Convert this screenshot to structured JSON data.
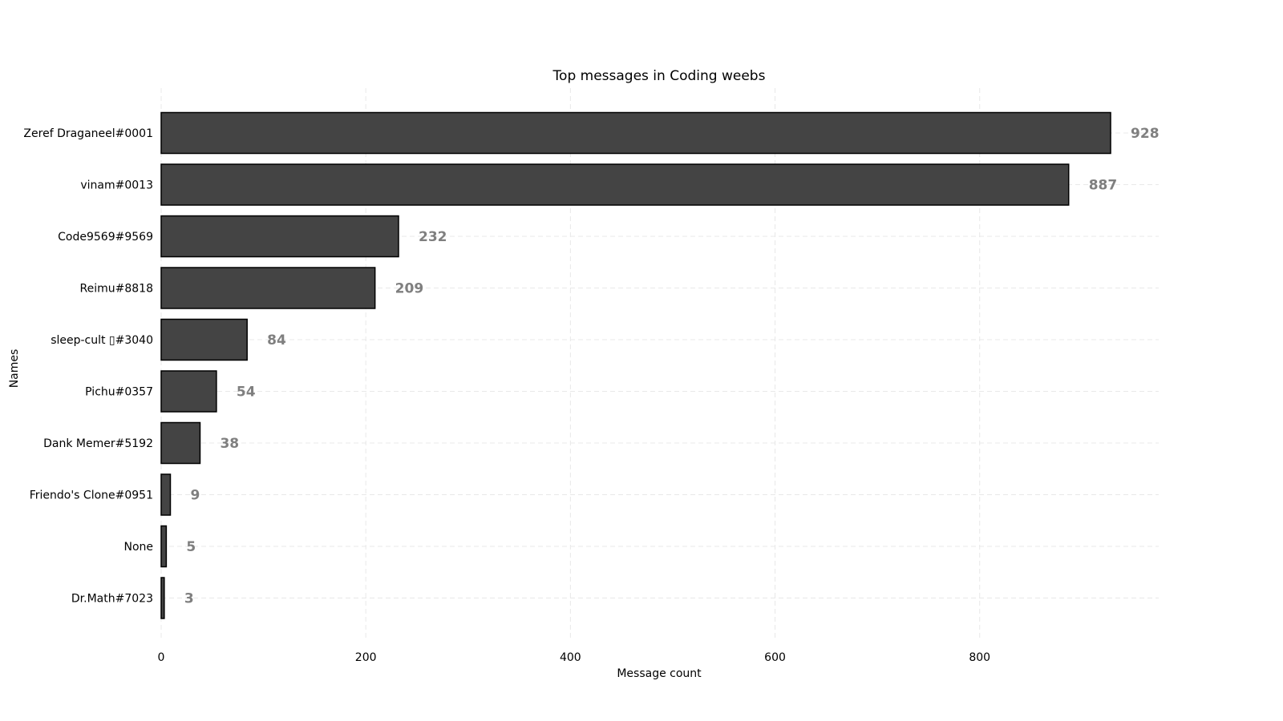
{
  "chart_data": {
    "type": "bar",
    "orientation": "horizontal",
    "title": "Top messages in Coding weebs",
    "xlabel": "Message count",
    "ylabel": "Names",
    "categories": [
      "Zeref Draganeel#0001",
      "vinam#0013",
      "Code9569#9569",
      "Reimu#8818",
      "sleep-cult ▯#3040",
      "Pichu#0357",
      "Dank Memer#5192",
      "Friendo's Clone#0951",
      "None",
      "Dr.Math#7023"
    ],
    "values": [
      928,
      887,
      232,
      209,
      84,
      54,
      38,
      9,
      5,
      3
    ],
    "xlim": [
      0,
      975
    ],
    "xticks": [
      0,
      200,
      400,
      600,
      800
    ],
    "grid": true,
    "colors": {
      "bar": "#444444",
      "edge": "#000000",
      "value_label": "#7f7f7f",
      "grid": "#e8e8e8"
    }
  }
}
